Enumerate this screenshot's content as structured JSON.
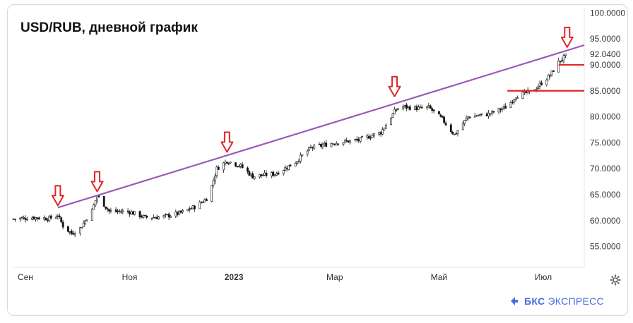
{
  "title": "USD/RUB, дневной график",
  "brand": {
    "name": "БКС",
    "suffix": "ЭКСПРЕСС",
    "color": "#4a6ee0"
  },
  "colors": {
    "trendline": "#9b59b6",
    "arrow": "#e0262b",
    "level": "#e0262b",
    "candle": "#111111"
  },
  "icons": {
    "settings": "gear-icon",
    "arrow": "down-arrow-icon",
    "logo": "bks-logo-icon"
  },
  "chart_data": {
    "type": "candlestick",
    "y_axis": {
      "position": "right",
      "ylim": [
        51,
        101
      ],
      "tick_labels": [
        "100.0000",
        "95.0000",
        "92.0400",
        "90.0000",
        "85.0000",
        "80.0000",
        "75.0000",
        "70.0000",
        "65.0000",
        "60.0000",
        "55.0000"
      ],
      "tick_values": [
        100,
        95,
        92.04,
        90,
        85,
        80,
        75,
        70,
        65,
        60,
        55
      ]
    },
    "x_axis": {
      "tick_labels": [
        "Сен",
        "Ноя",
        "2023",
        "Мар",
        "Май",
        "Июл"
      ],
      "bold_labels": [
        "2023"
      ],
      "range": [
        "2022-08-25",
        "2023-07-25"
      ]
    },
    "series_close": [
      {
        "date": "2022-08-25",
        "value": 60.3
      },
      {
        "date": "2022-09-05",
        "value": 60.6
      },
      {
        "date": "2022-09-15",
        "value": 60.4
      },
      {
        "date": "2022-09-20",
        "value": 61.0
      },
      {
        "date": "2022-09-23",
        "value": 59.0
      },
      {
        "date": "2022-09-28",
        "value": 57.5
      },
      {
        "date": "2022-10-03",
        "value": 58.5
      },
      {
        "date": "2022-10-10",
        "value": 62.0
      },
      {
        "date": "2022-10-13",
        "value": 64.8
      },
      {
        "date": "2022-10-20",
        "value": 61.8
      },
      {
        "date": "2022-11-01",
        "value": 61.7
      },
      {
        "date": "2022-11-10",
        "value": 60.6
      },
      {
        "date": "2022-11-20",
        "value": 60.7
      },
      {
        "date": "2022-12-01",
        "value": 61.5
      },
      {
        "date": "2022-12-10",
        "value": 62.8
      },
      {
        "date": "2022-12-17",
        "value": 64.5
      },
      {
        "date": "2022-12-22",
        "value": 70.0
      },
      {
        "date": "2022-12-28",
        "value": 71.5
      },
      {
        "date": "2023-01-05",
        "value": 70.5
      },
      {
        "date": "2023-01-12",
        "value": 68.5
      },
      {
        "date": "2023-01-25",
        "value": 69.0
      },
      {
        "date": "2023-02-05",
        "value": 71.0
      },
      {
        "date": "2023-02-15",
        "value": 74.0
      },
      {
        "date": "2023-03-01",
        "value": 75.0
      },
      {
        "date": "2023-03-15",
        "value": 75.5
      },
      {
        "date": "2023-03-28",
        "value": 77.0
      },
      {
        "date": "2023-04-05",
        "value": 81.0
      },
      {
        "date": "2023-04-08",
        "value": 82.0
      },
      {
        "date": "2023-04-20",
        "value": 81.6
      },
      {
        "date": "2023-04-25",
        "value": 81.8
      },
      {
        "date": "2023-05-03",
        "value": 79.5
      },
      {
        "date": "2023-05-10",
        "value": 76.5
      },
      {
        "date": "2023-05-18",
        "value": 80.0
      },
      {
        "date": "2023-05-30",
        "value": 80.5
      },
      {
        "date": "2023-06-10",
        "value": 82.0
      },
      {
        "date": "2023-06-15",
        "value": 84.0
      },
      {
        "date": "2023-06-25",
        "value": 85.0
      },
      {
        "date": "2023-07-05",
        "value": 88.0
      },
      {
        "date": "2023-07-10",
        "value": 90.5
      },
      {
        "date": "2023-07-15",
        "value": 92.0
      }
    ],
    "trendline": [
      {
        "date": "2022-09-20",
        "value": 62.5
      },
      {
        "date": "2023-07-25",
        "value": 93.8
      }
    ],
    "levels": [
      {
        "value": 90,
        "from": "2023-07-10",
        "to": "2023-07-25"
      },
      {
        "value": 85,
        "from": "2023-06-10",
        "to": "2023-07-25"
      }
    ],
    "arrows": [
      {
        "date": "2022-09-20",
        "value": 62.5
      },
      {
        "date": "2022-10-13",
        "value": 65.2
      },
      {
        "date": "2022-12-28",
        "value": 72.8
      },
      {
        "date": "2023-04-05",
        "value": 83.5
      },
      {
        "date": "2023-07-15",
        "value": 93.0
      }
    ],
    "last_value_label": "92.0400",
    "grid": false
  }
}
